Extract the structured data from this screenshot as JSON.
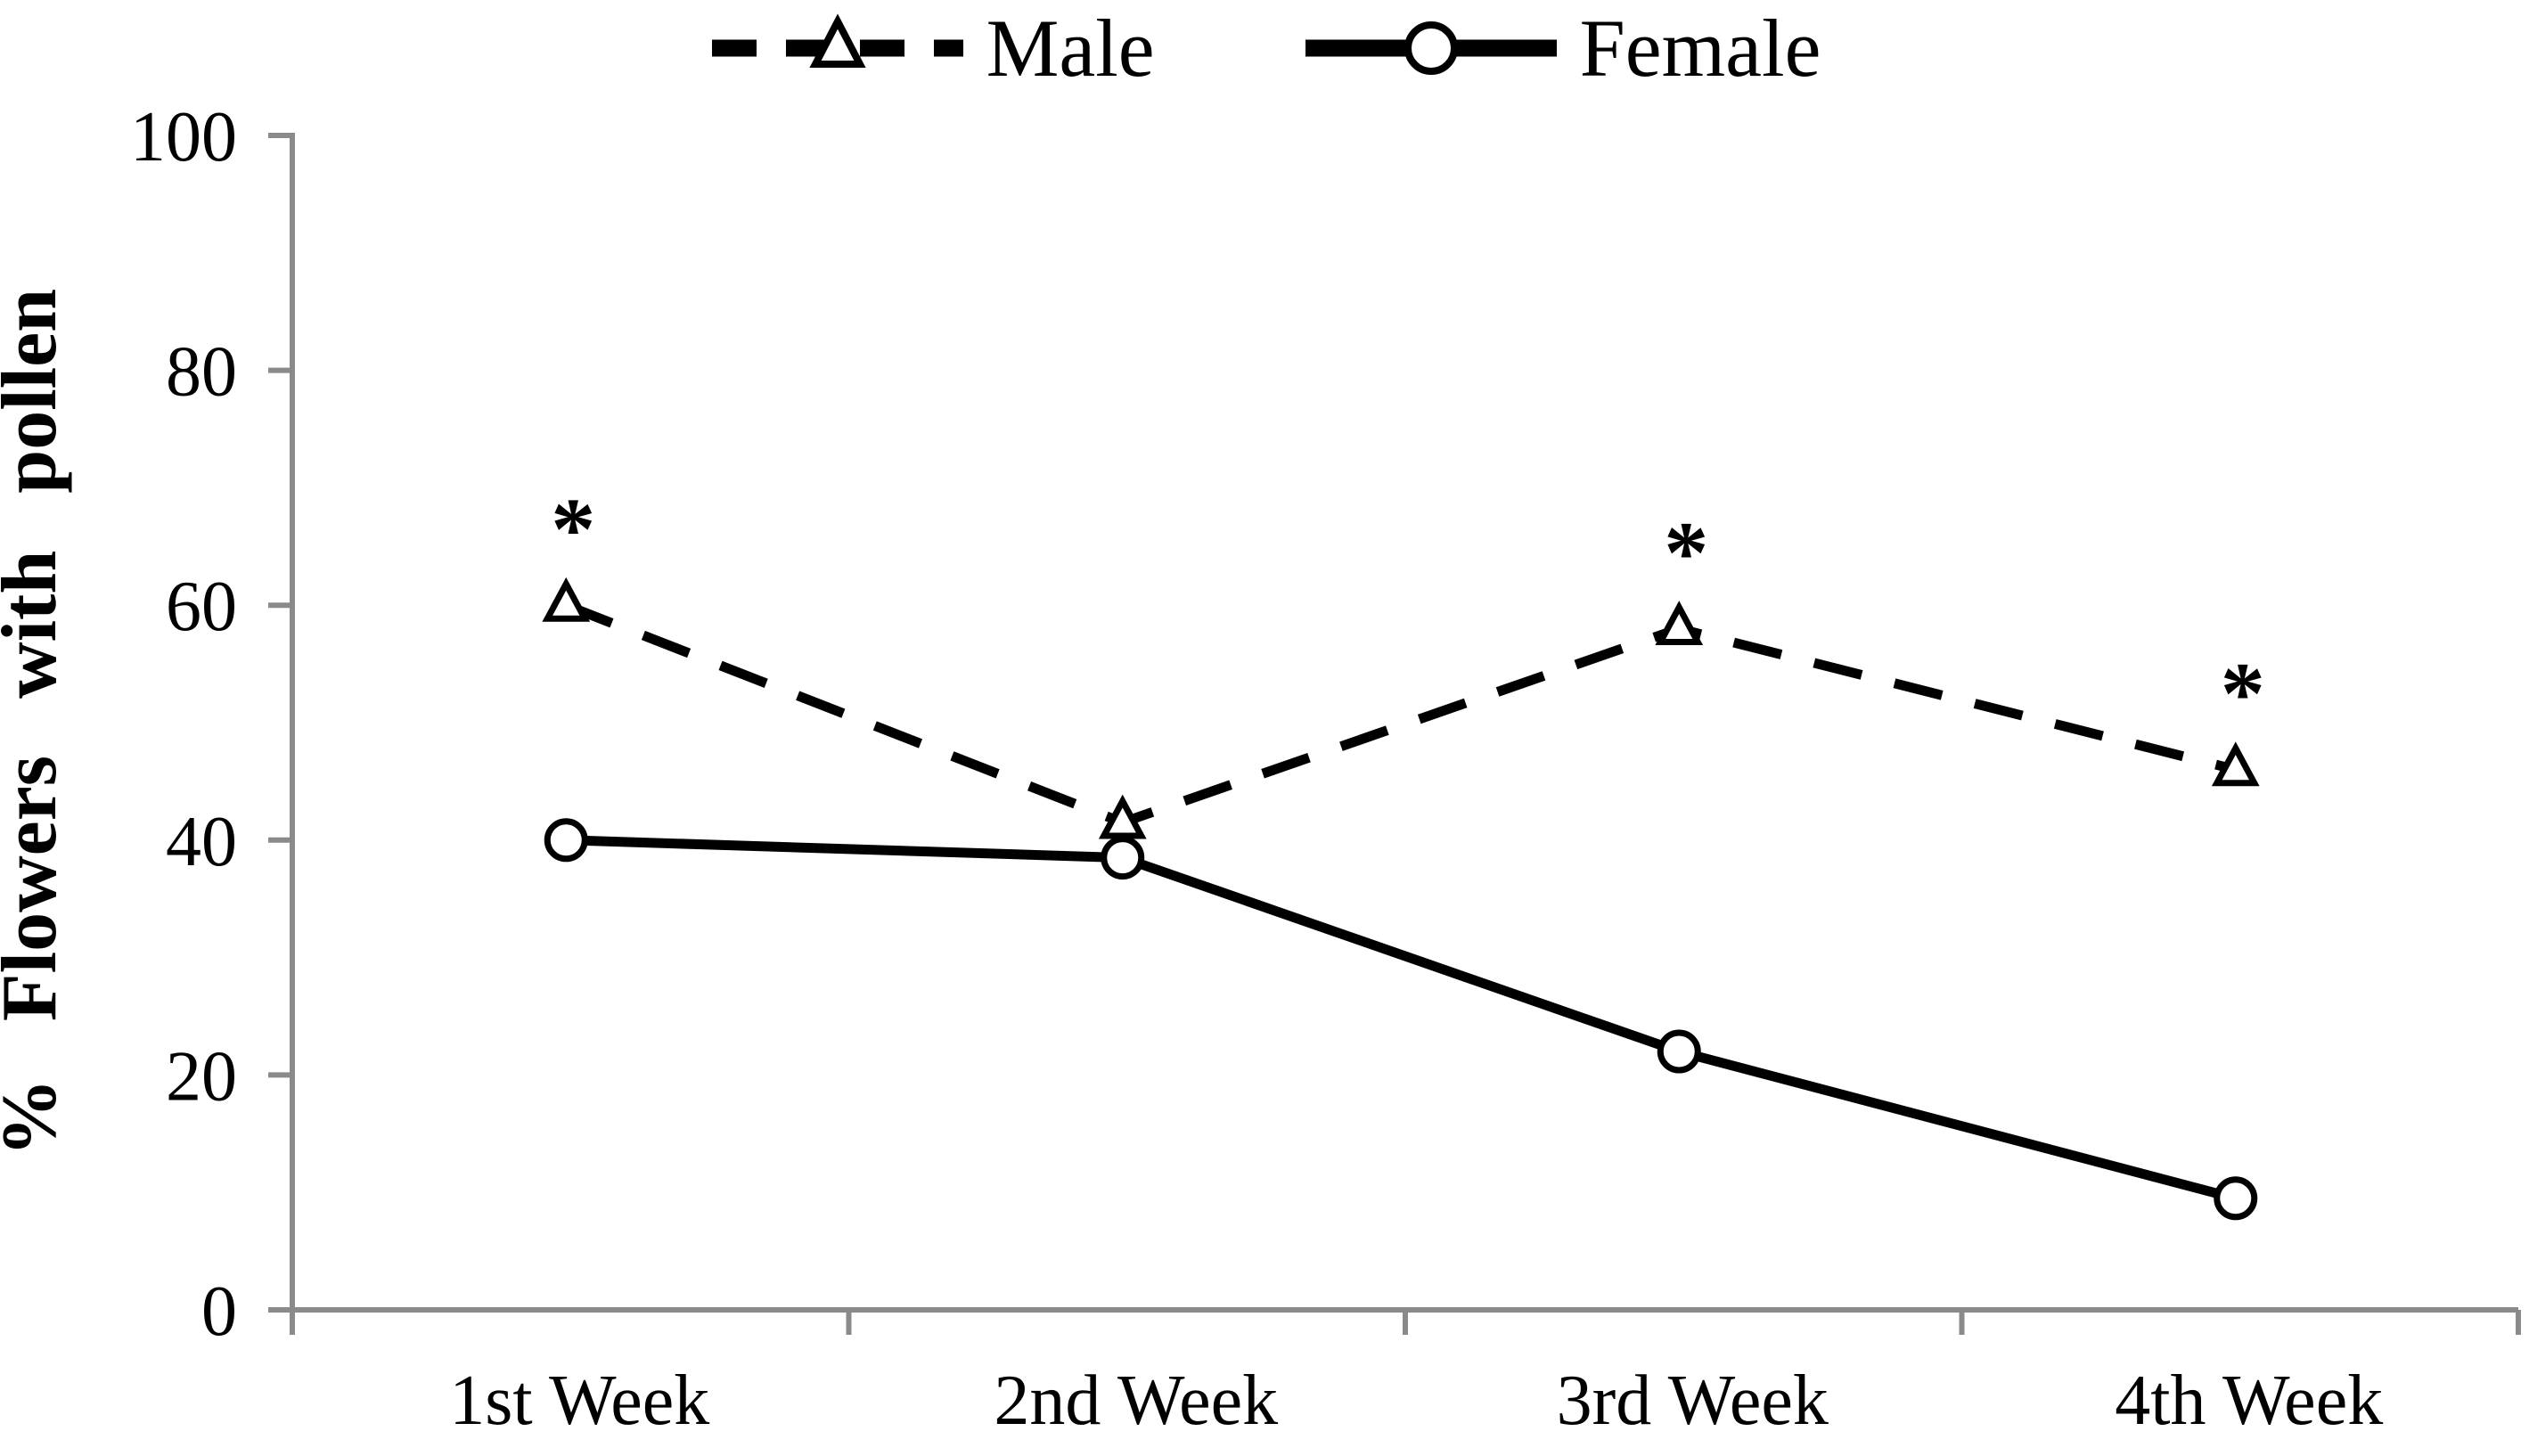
{
  "chart_data": {
    "type": "line",
    "title": "",
    "xlabel": "",
    "ylabel": "% Flowers with pollen",
    "categories": [
      "1st Week",
      "2nd Week",
      "3rd Week",
      "4th Week"
    ],
    "y_ticks": [
      0,
      20,
      40,
      60,
      80,
      100
    ],
    "y_tick_labels": [
      "0",
      "20",
      "40",
      "60",
      "80",
      "100"
    ],
    "ylim": [
      0,
      100
    ],
    "grid": false,
    "legend_position": "top-center",
    "series": [
      {
        "name": "Male",
        "values": [
          60,
          41.5,
          58,
          46
        ],
        "line_style": "dashed",
        "marker": "triangle",
        "significant": [
          true,
          false,
          true,
          true
        ]
      },
      {
        "name": "Female",
        "values": [
          40,
          38.5,
          22,
          9.5
        ],
        "line_style": "solid",
        "marker": "circle",
        "significant": [
          false,
          false,
          false,
          false
        ]
      }
    ],
    "annotation_symbol": "*",
    "annotation_meaning_visible_only_as": "*",
    "colors": {
      "series": "#000000",
      "axis": "#8a8a8a",
      "text": "#000000",
      "marker_fill": "#ffffff",
      "background": "#ffffff"
    }
  },
  "legend": {
    "male_label": "Male",
    "female_label": "Female"
  }
}
